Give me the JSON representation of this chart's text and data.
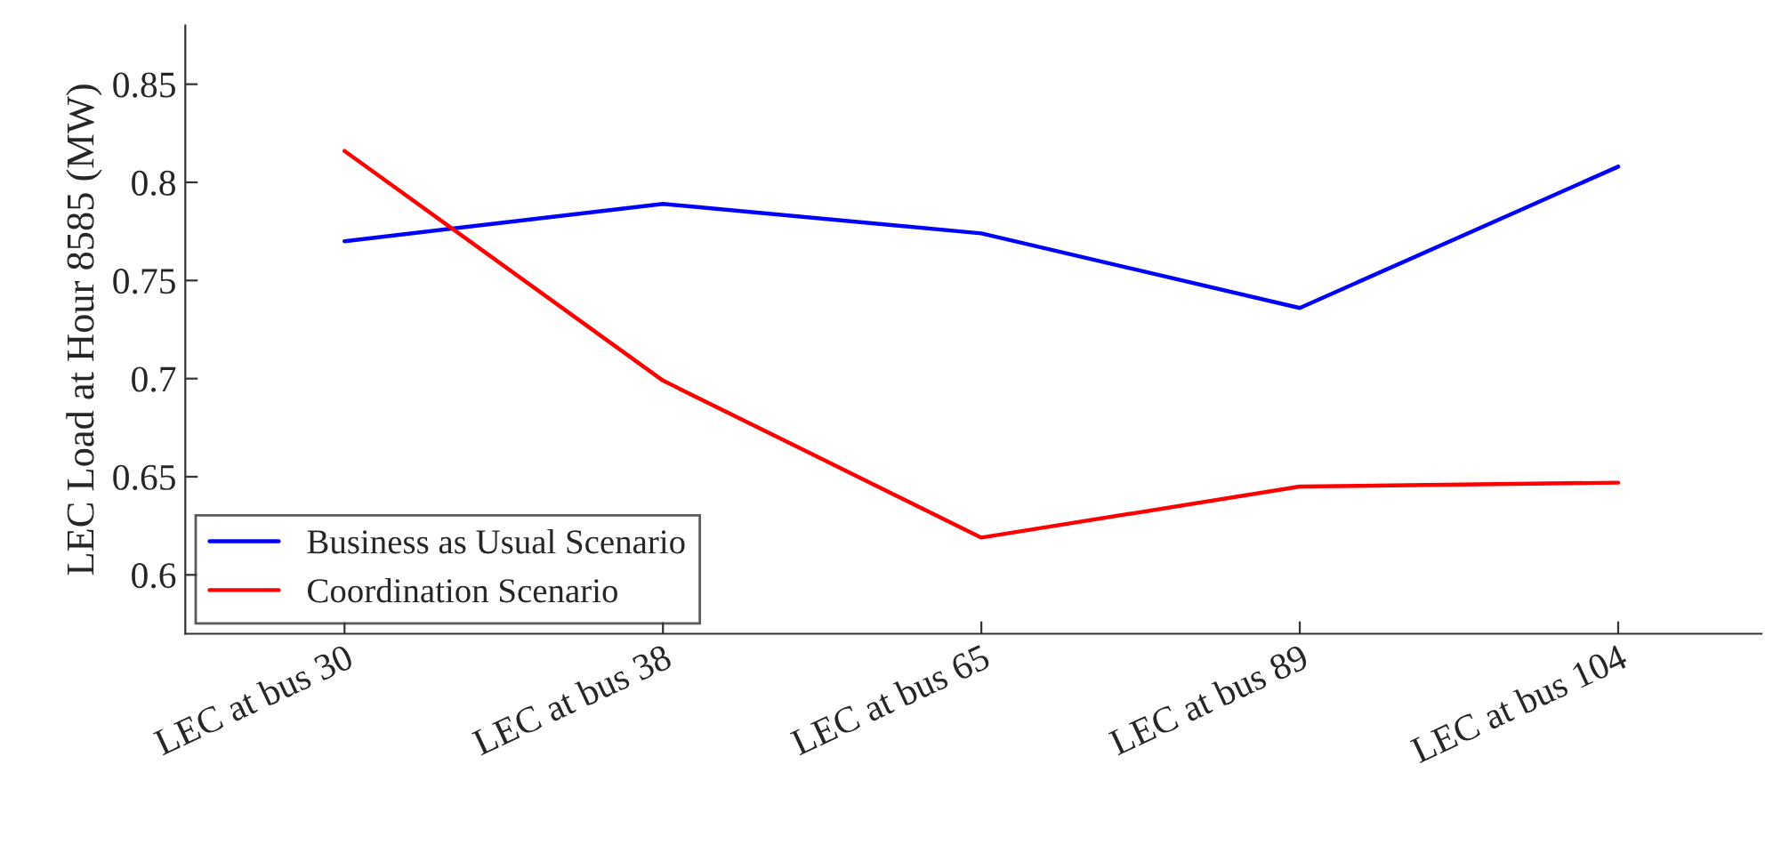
{
  "chart_data": {
    "type": "line",
    "ylabel": "LEC Load at Hour 8585 (MW)",
    "categories": [
      "LEC at bus 30",
      "LEC at bus 38",
      "LEC at bus 65",
      "LEC at bus 89",
      "LEC at bus 104"
    ],
    "series": [
      {
        "name": "Business as Usual Scenario",
        "color": "#0000ff",
        "values": [
          0.77,
          0.789,
          0.774,
          0.736,
          0.808
        ]
      },
      {
        "name": "Coordination Scenario",
        "color": "#ff0000",
        "values": [
          0.816,
          0.699,
          0.619,
          0.645,
          0.647
        ]
      }
    ],
    "ylim": [
      0.57,
      0.88
    ],
    "yticks": [
      0.6,
      0.65,
      0.7,
      0.75,
      0.8,
      0.85
    ],
    "grid": false,
    "legend": "bottom left",
    "marker": "none",
    "line_style": "solid"
  }
}
